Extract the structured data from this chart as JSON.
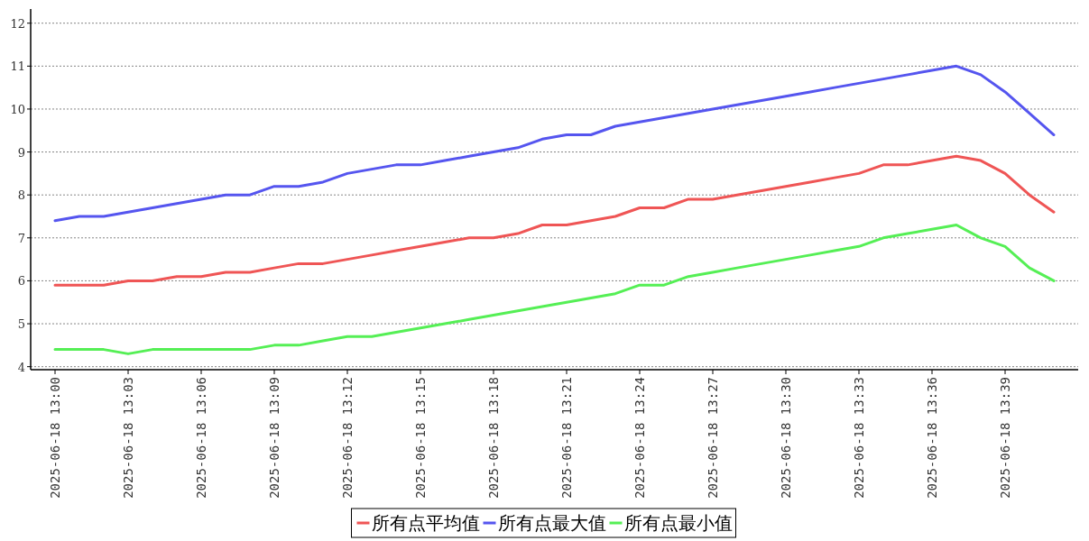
{
  "chart_data": {
    "type": "line",
    "x": [
      "2025-06-18T13:00",
      "2025-06-18T13:01",
      "2025-06-18T13:02",
      "2025-06-18T13:03",
      "2025-06-18T13:04",
      "2025-06-18T13:05",
      "2025-06-18T13:06",
      "2025-06-18T13:07",
      "2025-06-18T13:08",
      "2025-06-18T13:09",
      "2025-06-18T13:10",
      "2025-06-18T13:11",
      "2025-06-18T13:12",
      "2025-06-18T13:13",
      "2025-06-18T13:14",
      "2025-06-18T13:15",
      "2025-06-18T13:16",
      "2025-06-18T13:17",
      "2025-06-18T13:18",
      "2025-06-18T13:19",
      "2025-06-18T13:20",
      "2025-06-18T13:21",
      "2025-06-18T13:22",
      "2025-06-18T13:23",
      "2025-06-18T13:24",
      "2025-06-18T13:25",
      "2025-06-18T13:26",
      "2025-06-18T13:27",
      "2025-06-18T13:28",
      "2025-06-18T13:29",
      "2025-06-18T13:30",
      "2025-06-18T13:31",
      "2025-06-18T13:32",
      "2025-06-18T13:33",
      "2025-06-18T13:34",
      "2025-06-18T13:35",
      "2025-06-18T13:36",
      "2025-06-18T13:37",
      "2025-06-18T13:38",
      "2025-06-18T13:39",
      "2025-06-18T13:40",
      "2025-06-18T13:41"
    ],
    "series": [
      {
        "name": "所有点平均值",
        "color": "#ef5555",
        "values": [
          5.9,
          5.9,
          5.9,
          6.0,
          6.0,
          6.1,
          6.1,
          6.2,
          6.2,
          6.3,
          6.4,
          6.4,
          6.5,
          6.6,
          6.7,
          6.8,
          6.9,
          7.0,
          7.0,
          7.1,
          7.3,
          7.3,
          7.4,
          7.5,
          7.7,
          7.7,
          7.9,
          7.9,
          8.0,
          8.1,
          8.2,
          8.3,
          8.4,
          8.5,
          8.7,
          8.7,
          8.8,
          8.9,
          8.8,
          8.5,
          8.0,
          7.6
        ]
      },
      {
        "name": "所有点最大值",
        "color": "#5555ef",
        "values": [
          7.4,
          7.5,
          7.5,
          7.6,
          7.7,
          7.8,
          7.9,
          8.0,
          8.0,
          8.2,
          8.2,
          8.3,
          8.5,
          8.6,
          8.7,
          8.7,
          8.8,
          8.9,
          9.0,
          9.1,
          9.3,
          9.4,
          9.4,
          9.6,
          9.7,
          9.8,
          9.9,
          10.0,
          10.1,
          10.2,
          10.3,
          10.4,
          10.5,
          10.6,
          10.7,
          10.8,
          10.9,
          11.0,
          10.8,
          10.4,
          9.9,
          9.4
        ]
      },
      {
        "name": "所有点最小值",
        "color": "#55ef55",
        "values": [
          4.4,
          4.4,
          4.4,
          4.3,
          4.4,
          4.4,
          4.4,
          4.4,
          4.4,
          4.5,
          4.5,
          4.6,
          4.7,
          4.7,
          4.8,
          4.9,
          5.0,
          5.1,
          5.2,
          5.3,
          5.4,
          5.5,
          5.6,
          5.7,
          5.9,
          5.9,
          6.1,
          6.2,
          6.3,
          6.4,
          6.5,
          6.6,
          6.7,
          6.8,
          7.0,
          7.1,
          7.2,
          7.3,
          7.0,
          6.8,
          6.3,
          6.0
        ]
      }
    ],
    "xlim": [
      "2025-06-18T12:59",
      "2025-06-18T13:42"
    ],
    "xticks": [
      {
        "value": "2025-06-18T13:00",
        "label": "2025-06-18 13:00"
      },
      {
        "value": "2025-06-18T13:03",
        "label": "2025-06-18 13:03"
      },
      {
        "value": "2025-06-18T13:06",
        "label": "2025-06-18 13:06"
      },
      {
        "value": "2025-06-18T13:09",
        "label": "2025-06-18 13:09"
      },
      {
        "value": "2025-06-18T13:12",
        "label": "2025-06-18 13:12"
      },
      {
        "value": "2025-06-18T13:15",
        "label": "2025-06-18 13:15"
      },
      {
        "value": "2025-06-18T13:18",
        "label": "2025-06-18 13:18"
      },
      {
        "value": "2025-06-18T13:21",
        "label": "2025-06-18 13:21"
      },
      {
        "value": "2025-06-18T13:24",
        "label": "2025-06-18 13:24"
      },
      {
        "value": "2025-06-18T13:27",
        "label": "2025-06-18 13:27"
      },
      {
        "value": "2025-06-18T13:30",
        "label": "2025-06-18 13:30"
      },
      {
        "value": "2025-06-18T13:33",
        "label": "2025-06-18 13:33"
      },
      {
        "value": "2025-06-18T13:36",
        "label": "2025-06-18 13:36"
      },
      {
        "value": "2025-06-18T13:39",
        "label": "2025-06-18 13:39"
      }
    ],
    "ylim": [
      3.93,
      12.33
    ],
    "yticks": [
      4,
      5,
      6,
      7,
      8,
      9,
      10,
      11,
      12
    ],
    "grid": "y",
    "legend": "bottom",
    "marker": "none",
    "line_style": "solid"
  }
}
